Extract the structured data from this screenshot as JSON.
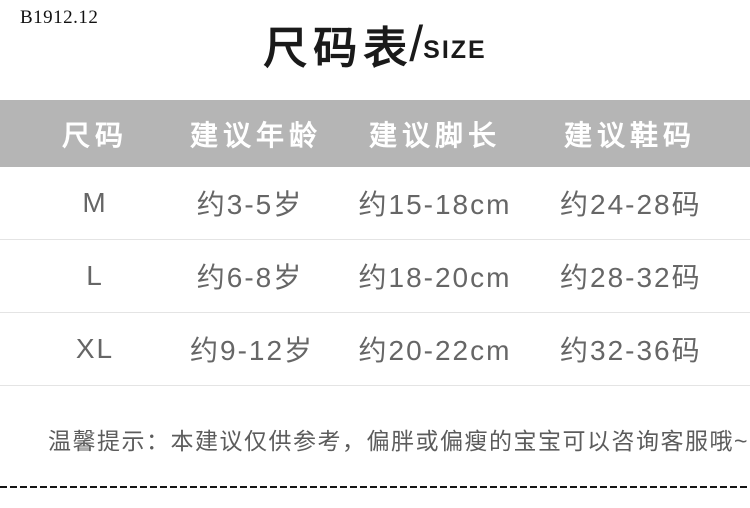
{
  "product_code": "B1912.12",
  "title": {
    "cn": "尺码表",
    "divider": "/",
    "en": "SIZE"
  },
  "table": {
    "headers": [
      "尺码",
      "建议年龄",
      "建议脚长",
      "建议鞋码"
    ],
    "rows": [
      [
        "M",
        "约3-5岁",
        "约15-18cm",
        "约24-28码"
      ],
      [
        "L",
        "约6-8岁",
        "约18-20cm",
        "约28-32码"
      ],
      [
        "XL",
        "约9-12岁",
        "约20-22cm",
        "约32-36码"
      ]
    ]
  },
  "note": "温馨提示：本建议仅供参考，偏胖或偏瘦的宝宝可以咨询客服哦~",
  "colors": {
    "header_bg": "#b5b5b5",
    "header_text": "#ffffff",
    "title_text": "#1a1a1a",
    "row_text": "#666666",
    "divider": "#e4e4e4",
    "dash": "#141414",
    "note_text": "#5c5c5c"
  }
}
